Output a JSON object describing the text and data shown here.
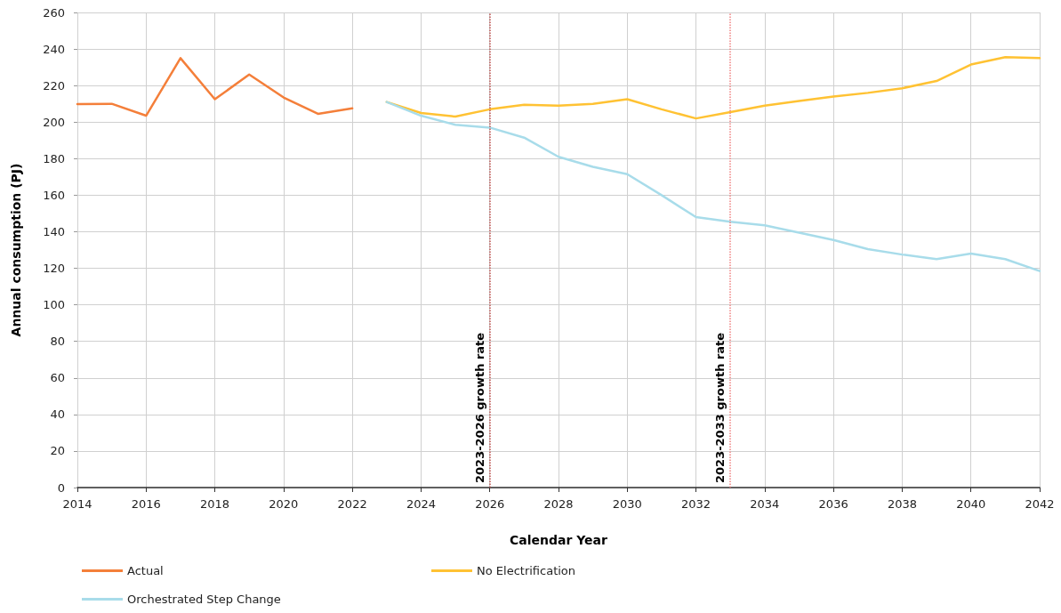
{
  "chart_data": {
    "type": "line",
    "xlabel": "Calendar Year",
    "ylabel": "Annual consumption (PJ)",
    "xlim": [
      2014,
      2042
    ],
    "xticks": [
      2014,
      2016,
      2018,
      2020,
      2022,
      2024,
      2026,
      2028,
      2030,
      2032,
      2034,
      2036,
      2038,
      2040,
      2042
    ],
    "ylim": [
      0,
      260
    ],
    "yticks": [
      0,
      20,
      40,
      60,
      80,
      100,
      120,
      140,
      160,
      180,
      200,
      220,
      240,
      260
    ],
    "grid": true,
    "legend": "bottom",
    "marker": "none",
    "line_style": "solid",
    "series": [
      {
        "name": "Actual",
        "color": "#f47f3a",
        "x": [
          2014,
          2015,
          2016,
          2017,
          2018,
          2019,
          2020,
          2021,
          2022
        ],
        "values": [
          209.8,
          210,
          203.5,
          235,
          212.5,
          226,
          213.5,
          204.5,
          207.5
        ]
      },
      {
        "name": "No Electrification",
        "color": "#ffc233",
        "x": [
          2023,
          2024,
          2025,
          2026,
          2027,
          2028,
          2029,
          2030,
          2031,
          2032,
          2033,
          2034,
          2035,
          2036,
          2037,
          2038,
          2039,
          2040,
          2041,
          2042
        ],
        "values": [
          211,
          205,
          203,
          207,
          209.5,
          209,
          210,
          212.5,
          207,
          202,
          205.5,
          209,
          211.5,
          214,
          216,
          218.5,
          222.5,
          231.5,
          235.5,
          235
        ]
      },
      {
        "name": "Orchestrated Step Change",
        "color": "#a8dcea",
        "x": [
          2023,
          2024,
          2025,
          2026,
          2027,
          2028,
          2029,
          2030,
          2031,
          2032,
          2033,
          2034,
          2035,
          2036,
          2037,
          2038,
          2039,
          2040,
          2041,
          2042
        ],
        "values": [
          211,
          203.5,
          198.5,
          197,
          191.5,
          181,
          175.5,
          171.5,
          160,
          148,
          145.5,
          143.5,
          139.5,
          135.5,
          130.5,
          127.5,
          125,
          128,
          125,
          118.5
        ]
      }
    ],
    "ref_lines": [
      {
        "axis": "x",
        "value": 2026,
        "label": "2023-2026 growth rate",
        "color": "#c0504d",
        "line_style": "dotted"
      },
      {
        "axis": "x",
        "value": 2033,
        "label": "2023-2033 growth rate",
        "color": "#f08080",
        "line_style": "dotted"
      }
    ]
  }
}
